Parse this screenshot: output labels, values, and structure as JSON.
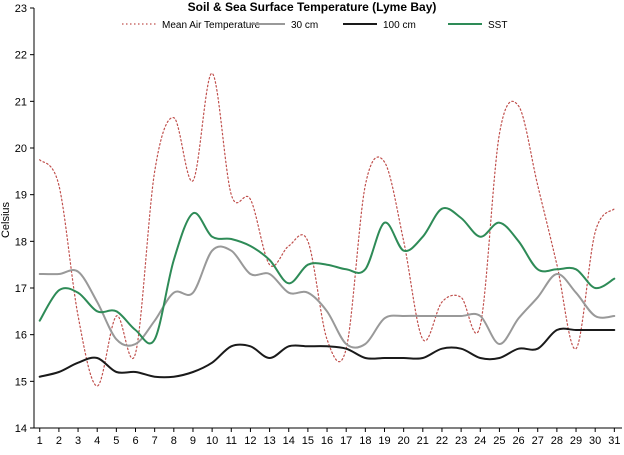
{
  "chart_data": {
    "type": "line",
    "title": "Soil & Sea Surface Temperature (Lyme Bay)",
    "xlabel": "",
    "ylabel": "Celsius",
    "x": [
      1,
      2,
      3,
      4,
      5,
      6,
      7,
      8,
      9,
      10,
      11,
      12,
      13,
      14,
      15,
      16,
      17,
      18,
      19,
      20,
      21,
      22,
      23,
      24,
      25,
      26,
      27,
      28,
      29,
      30,
      31
    ],
    "xlim": [
      0.7,
      31.4
    ],
    "ylim": [
      14,
      23
    ],
    "yticks": [
      14,
      15,
      16,
      17,
      18,
      19,
      20,
      21,
      22,
      23
    ],
    "grid": false,
    "legend_position": "top",
    "series": [
      {
        "name": "Mean Air Temperature",
        "color": "#c0504d",
        "style": "dotted",
        "values": [
          19.75,
          19.2,
          16.4,
          14.9,
          16.4,
          15.6,
          19.5,
          20.65,
          19.3,
          21.6,
          19.0,
          18.9,
          17.5,
          17.9,
          18.0,
          15.9,
          15.7,
          19.2,
          19.7,
          18.0,
          15.9,
          16.7,
          16.8,
          16.2,
          20.3,
          20.9,
          19.2,
          17.5,
          15.7,
          18.2,
          18.7
        ]
      },
      {
        "name": "30 cm",
        "color": "#999999",
        "style": "solid",
        "values": [
          17.3,
          17.3,
          17.35,
          16.7,
          15.9,
          15.8,
          16.3,
          16.9,
          16.9,
          17.8,
          17.8,
          17.3,
          17.3,
          16.9,
          16.9,
          16.5,
          15.8,
          15.8,
          16.35,
          16.4,
          16.4,
          16.4,
          16.4,
          16.4,
          15.8,
          16.35,
          16.8,
          17.3,
          16.9,
          16.4,
          16.4
        ]
      },
      {
        "name": "100 cm",
        "color": "#1a1a1a",
        "style": "solid",
        "values": [
          15.1,
          15.2,
          15.4,
          15.5,
          15.2,
          15.2,
          15.1,
          15.1,
          15.2,
          15.4,
          15.75,
          15.75,
          15.5,
          15.75,
          15.75,
          15.75,
          15.7,
          15.5,
          15.5,
          15.5,
          15.5,
          15.7,
          15.7,
          15.5,
          15.5,
          15.7,
          15.7,
          16.1,
          16.1,
          16.1,
          16.1
        ]
      },
      {
        "name": "SST",
        "color": "#2e8b57",
        "style": "solid",
        "values": [
          16.3,
          16.95,
          16.9,
          16.5,
          16.5,
          16.1,
          15.9,
          17.6,
          18.6,
          18.1,
          18.05,
          17.9,
          17.6,
          17.1,
          17.5,
          17.5,
          17.4,
          17.4,
          18.4,
          17.8,
          18.1,
          18.7,
          18.5,
          18.1,
          18.4,
          18.0,
          17.4,
          17.4,
          17.4,
          17.0,
          17.2
        ]
      }
    ]
  }
}
